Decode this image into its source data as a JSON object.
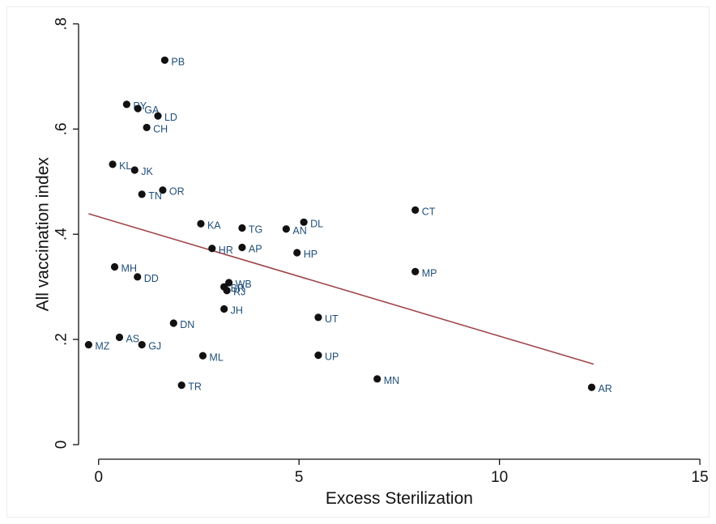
{
  "chart_data": {
    "type": "scatter",
    "title": "",
    "xlabel": "Excess Sterilization",
    "ylabel": "All vaccination index",
    "xlim": [
      -0.5,
      15.2
    ],
    "ylim": [
      -0.02,
      0.83
    ],
    "xticks": [
      0,
      5,
      10,
      15
    ],
    "xtick_labels": [
      "0",
      "5",
      "10",
      "15"
    ],
    "yticks": [
      0,
      0.2,
      0.4,
      0.6,
      0.8
    ],
    "ytick_labels": [
      "0",
      ".2",
      ".4",
      ".6",
      ".8"
    ],
    "grid": false,
    "point_color": "#111111",
    "label_color": "#1f4e79",
    "fit_color": "#a0454a",
    "points": [
      {
        "label": "PB",
        "x": 1.65,
        "y": 0.731
      },
      {
        "label": "PY",
        "x": 0.7,
        "y": 0.647
      },
      {
        "label": "GA",
        "x": 0.98,
        "y": 0.639
      },
      {
        "label": "LD",
        "x": 1.48,
        "y": 0.625
      },
      {
        "label": "CH",
        "x": 1.2,
        "y": 0.603
      },
      {
        "label": "KL",
        "x": 0.35,
        "y": 0.533
      },
      {
        "label": "JK",
        "x": 0.9,
        "y": 0.522
      },
      {
        "label": "OR",
        "x": 1.6,
        "y": 0.484
      },
      {
        "label": "TN",
        "x": 1.08,
        "y": 0.476
      },
      {
        "label": "KA",
        "x": 2.55,
        "y": 0.42
      },
      {
        "label": "TG",
        "x": 3.58,
        "y": 0.412
      },
      {
        "label": "AN",
        "x": 4.68,
        "y": 0.41
      },
      {
        "label": "DL",
        "x": 5.12,
        "y": 0.423
      },
      {
        "label": "CT",
        "x": 7.9,
        "y": 0.446
      },
      {
        "label": "HR",
        "x": 2.83,
        "y": 0.373
      },
      {
        "label": "AP",
        "x": 3.58,
        "y": 0.375
      },
      {
        "label": "HP",
        "x": 4.95,
        "y": 0.365
      },
      {
        "label": "MH",
        "x": 0.4,
        "y": 0.338
      },
      {
        "label": "DD",
        "x": 0.97,
        "y": 0.319
      },
      {
        "label": "MP",
        "x": 7.9,
        "y": 0.329
      },
      {
        "label": "WB",
        "x": 3.25,
        "y": 0.308
      },
      {
        "label": "BR",
        "x": 3.13,
        "y": 0.3
      },
      {
        "label": "RJ",
        "x": 3.2,
        "y": 0.293
      },
      {
        "label": "JH",
        "x": 3.13,
        "y": 0.258
      },
      {
        "label": "UT",
        "x": 5.48,
        "y": 0.242
      },
      {
        "label": "DN",
        "x": 1.87,
        "y": 0.231
      },
      {
        "label": "AS",
        "x": 0.52,
        "y": 0.204
      },
      {
        "label": "GJ",
        "x": 1.08,
        "y": 0.19
      },
      {
        "label": "MZ",
        "x": -0.25,
        "y": 0.19
      },
      {
        "label": "ML",
        "x": 2.6,
        "y": 0.169
      },
      {
        "label": "UP",
        "x": 5.48,
        "y": 0.17
      },
      {
        "label": "MN",
        "x": 6.95,
        "y": 0.125
      },
      {
        "label": "TR",
        "x": 2.07,
        "y": 0.113
      },
      {
        "label": "AR",
        "x": 12.3,
        "y": 0.109
      }
    ],
    "fit_line": {
      "x": [
        -0.25,
        12.35
      ],
      "y": [
        0.439,
        0.153
      ]
    }
  }
}
